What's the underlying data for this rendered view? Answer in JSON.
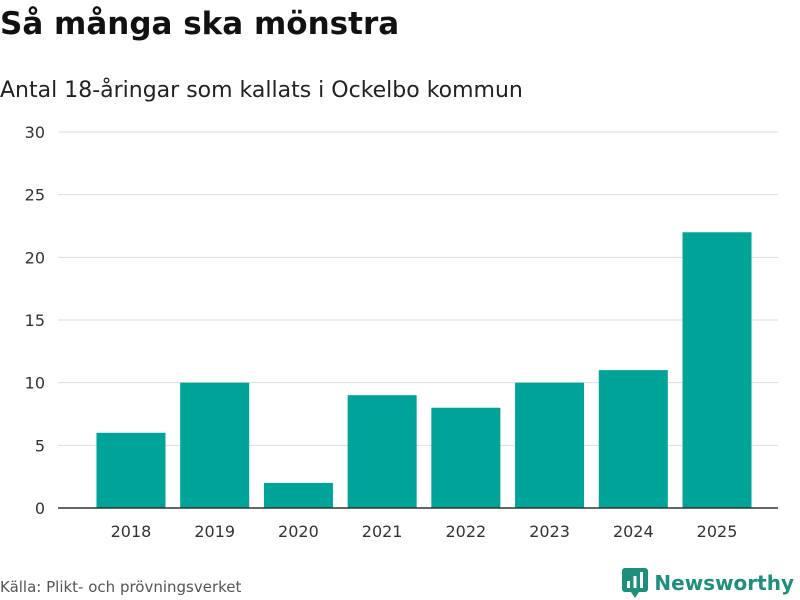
{
  "title": "Så många ska mönstra",
  "subtitle": "Antal 18-åringar som kallats i Ockelbo kommun",
  "source": "Källa: Plikt- och prövningsverket",
  "brand": {
    "name": "Newsworthy",
    "icon": "newsworthy-logo-icon",
    "color": "#1e8f7d"
  },
  "colors": {
    "bar": "#00a398",
    "grid": "#dddddd",
    "axis": "#333333"
  },
  "chart_data": {
    "type": "bar",
    "title": "Så många ska mönstra",
    "subtitle": "Antal 18-åringar som kallats i Ockelbo kommun",
    "xlabel": "",
    "ylabel": "",
    "categories": [
      "2018",
      "2019",
      "2020",
      "2021",
      "2022",
      "2023",
      "2024",
      "2025"
    ],
    "values": [
      6,
      10,
      2,
      9,
      8,
      10,
      11,
      22
    ],
    "ylim": [
      0,
      30
    ],
    "yticks": [
      0,
      5,
      10,
      15,
      20,
      25,
      30
    ],
    "grid": true
  }
}
